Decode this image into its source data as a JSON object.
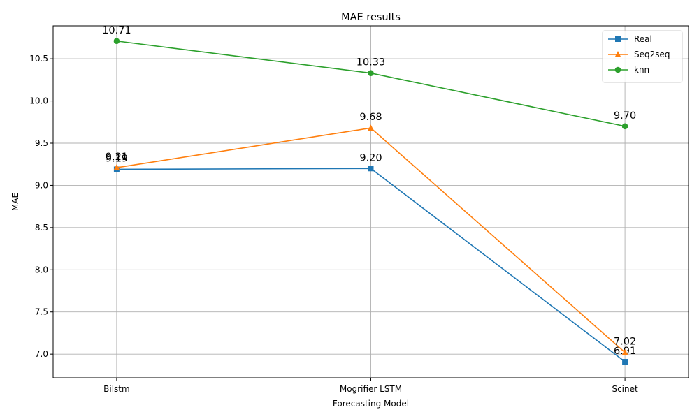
{
  "chart_data": {
    "type": "line",
    "title": "MAE results",
    "xlabel": "Forecasting Model",
    "ylabel": "MAE",
    "categories": [
      "Bilstm",
      "Mogrifier LSTM",
      "Scinet"
    ],
    "ylim": [
      6.72,
      10.89
    ],
    "yticks": [
      7.0,
      7.5,
      8.0,
      8.5,
      9.0,
      9.5,
      10.0,
      10.5
    ],
    "grid": true,
    "legend_position": "top-right",
    "series": [
      {
        "name": "Real",
        "values": [
          9.19,
          9.2,
          6.91
        ],
        "labels": [
          "9.19",
          "9.20",
          "6.91"
        ],
        "color": "#1f77b4",
        "marker": "square"
      },
      {
        "name": "Seq2seq",
        "values": [
          9.21,
          9.68,
          7.02
        ],
        "labels": [
          "9.21",
          "9.68",
          "7.02"
        ],
        "color": "#ff7f0e",
        "marker": "triangle"
      },
      {
        "name": "knn",
        "values": [
          10.71,
          10.33,
          9.7
        ],
        "labels": [
          "10.71",
          "10.33",
          "9.70"
        ],
        "color": "#2ca02c",
        "marker": "circle"
      }
    ]
  }
}
